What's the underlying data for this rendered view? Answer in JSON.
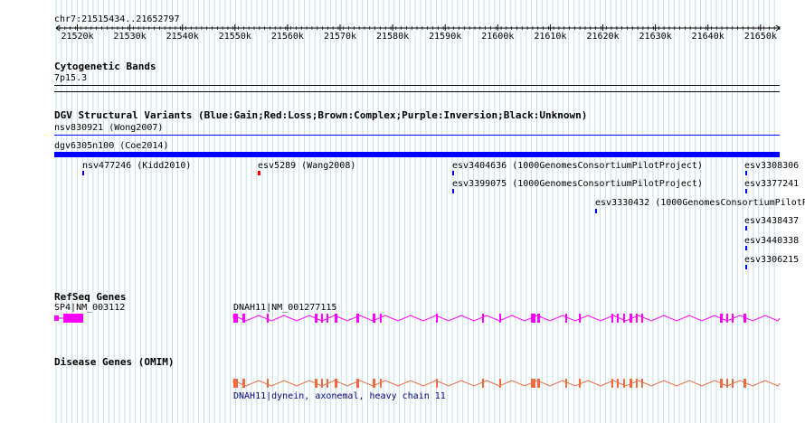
{
  "ruler": {
    "locus": "chr7:21515434..21652797",
    "ticks": [
      "21520k",
      "21530k",
      "21540k",
      "21550k",
      "21560k",
      "21570k",
      "21580k",
      "21590k",
      "21600k",
      "21610k",
      "21620k",
      "21630k",
      "21640k",
      "21650k"
    ]
  },
  "cytoband": {
    "title": "Cytogenetic Bands",
    "band": "7p15.3"
  },
  "dgv": {
    "title": "DGV Structural Variants (Blue:Gain;Red:Loss;Brown:Complex;Purple:Inversion;Black:Unknown)",
    "colors": {
      "gain": "#0000ff",
      "loss": "#ff0000"
    },
    "features": [
      {
        "label": "nsv830921 (Wong2007)",
        "type": "gain"
      },
      {
        "label": "dgv6305n100 (Coe2014)",
        "type": "gain"
      },
      {
        "label": "nsv477246 (Kidd2010)",
        "type": "gain"
      },
      {
        "label": "esv5289 (Wang2008)",
        "type": "loss"
      },
      {
        "label": "esv3404636 (1000GenomesConsortiumPilotProject)",
        "type": "gain"
      },
      {
        "label": "esv3399075 (1000GenomesConsortiumPilotProject)",
        "type": "gain"
      },
      {
        "label": "esv3330432 (1000GenomesConsortiumPilotP",
        "type": "gain"
      },
      {
        "label": "esv3308306",
        "type": "gain"
      },
      {
        "label": "esv3377241",
        "type": "gain"
      },
      {
        "label": "esv3438437",
        "type": "gain"
      },
      {
        "label": "esv3440338",
        "type": "gain"
      },
      {
        "label": "esv3306215",
        "type": "gain"
      }
    ]
  },
  "refseq": {
    "title": "RefSeq Genes",
    "color": "#ff00ff",
    "genes": [
      {
        "label": "SP4|NM_003112"
      },
      {
        "label": "DNAH11|NM_001277115"
      }
    ]
  },
  "omim": {
    "title": "Disease Genes (OMIM)",
    "color": "#f06a3c",
    "genes": [
      {
        "label": "DNAH11|dynein, axonemal, heavy chain 11"
      }
    ]
  }
}
